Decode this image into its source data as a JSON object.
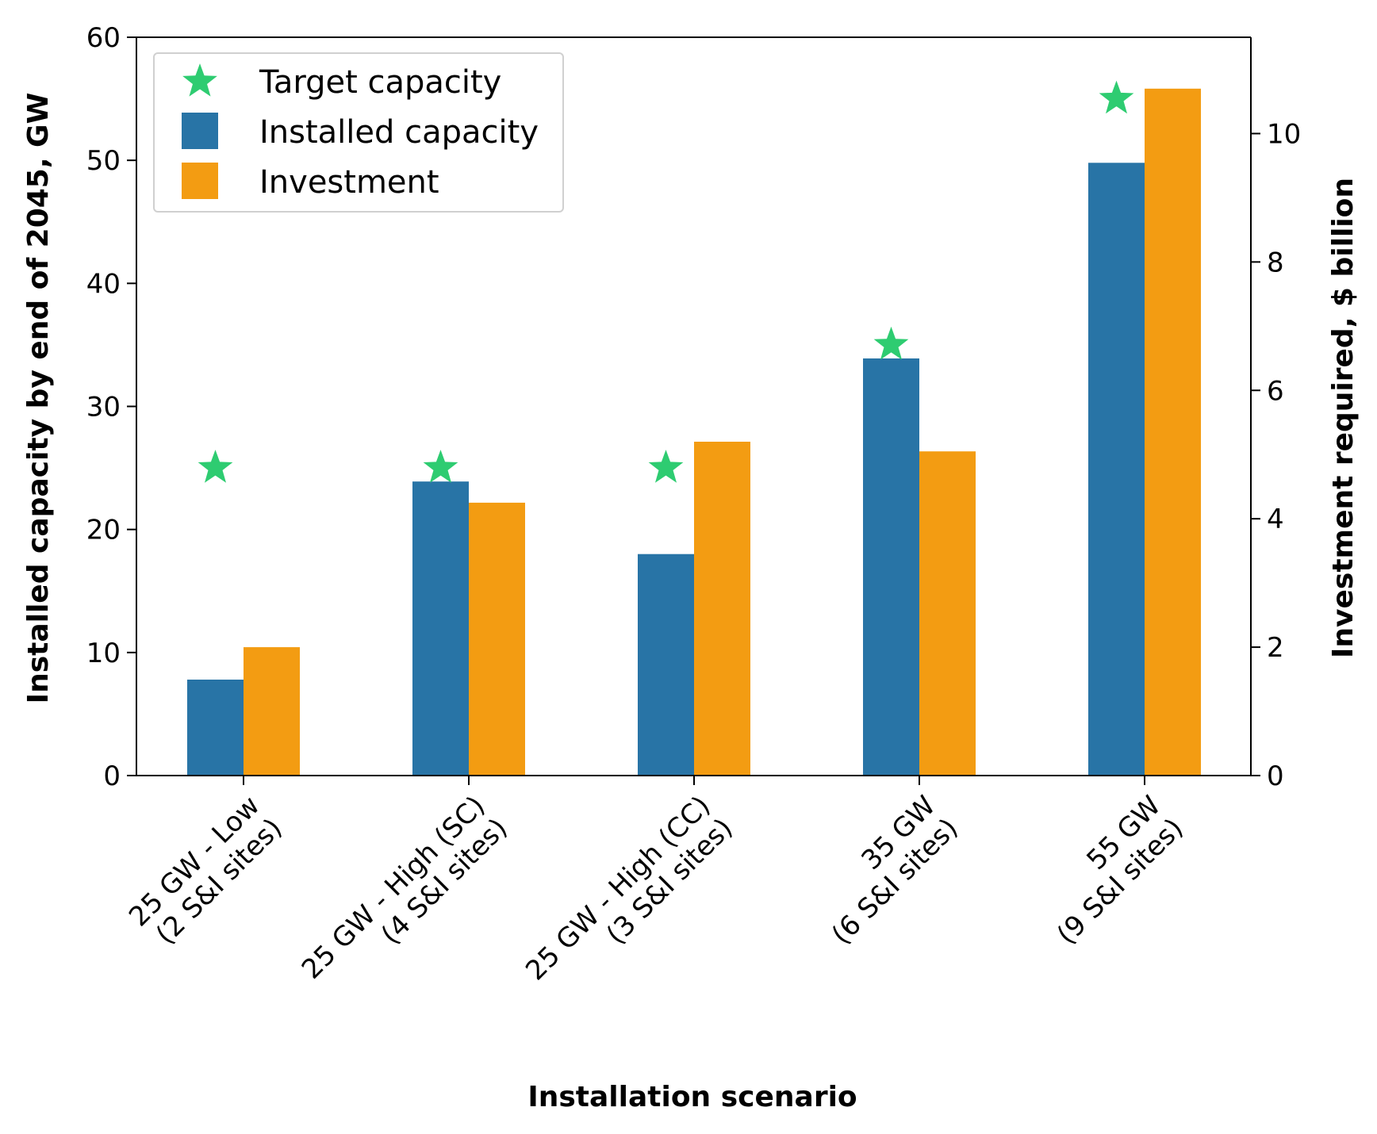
{
  "colors": {
    "installed": "#2874a6",
    "investment": "#f39c12",
    "target": "#2ecc71"
  },
  "chart_data": {
    "type": "bar",
    "categories": [
      [
        "25 GW - Low",
        "(2 S&I sites)"
      ],
      [
        "25 GW - High (SC)",
        "(4 S&I sites)"
      ],
      [
        "25 GW - High (CC)",
        "(3 S&I sites)"
      ],
      [
        "35 GW",
        "(6 S&I sites)"
      ],
      [
        "55 GW",
        "(9 S&I  sites)"
      ]
    ],
    "series": [
      {
        "name": "Target capacity",
        "kind": "star-marker",
        "axis": "left",
        "values": [
          25,
          25,
          25,
          35,
          55
        ]
      },
      {
        "name": "Installed capacity",
        "kind": "bar",
        "axis": "left",
        "values": [
          7.8,
          23.9,
          18.0,
          33.9,
          49.8
        ]
      },
      {
        "name": "Investment",
        "kind": "bar",
        "axis": "right",
        "values": [
          2.0,
          4.25,
          5.2,
          5.05,
          10.7
        ]
      }
    ],
    "xlabel": "Installation scenario",
    "ylabel": "Installed capacity by end of 2045, GW",
    "y2label": "Investment required, $ billion",
    "ylim": [
      0,
      60
    ],
    "y2lim": [
      0,
      11.5
    ],
    "yticks": [
      0,
      10,
      20,
      30,
      40,
      50,
      60
    ],
    "y2ticks": [
      0,
      2,
      4,
      6,
      8,
      10
    ],
    "legend_position": "top-left",
    "grid": false
  }
}
